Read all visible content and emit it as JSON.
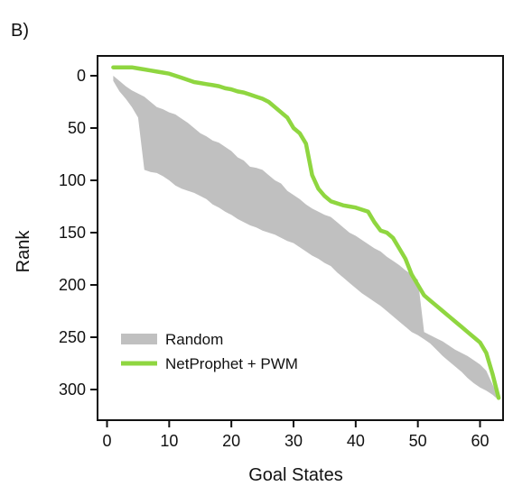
{
  "panel_label": "B)",
  "chart_data": {
    "type": "area",
    "xlabel": "Goal States",
    "ylabel": "Rank",
    "xlim": [
      0,
      64
    ],
    "ylim": [
      0,
      320
    ],
    "y_inverted": true,
    "x_ticks": [
      0,
      10,
      20,
      30,
      40,
      50,
      60
    ],
    "y_ticks": [
      0,
      50,
      100,
      150,
      200,
      250,
      300
    ],
    "x_tick_labels": [
      "0",
      "10",
      "20",
      "30",
      "40",
      "50",
      "60"
    ],
    "y_tick_labels": [
      "0",
      "50",
      "100",
      "150",
      "200",
      "250",
      "300"
    ],
    "grid": false,
    "legend_position": "bottom-left",
    "series": [
      {
        "name": "Random",
        "kind": "band",
        "color": "#c0c0c0",
        "x": [
          1,
          2,
          3,
          4,
          5,
          6,
          7,
          8,
          9,
          10,
          11,
          12,
          13,
          14,
          15,
          16,
          17,
          18,
          19,
          20,
          21,
          22,
          23,
          24,
          25,
          26,
          27,
          28,
          29,
          30,
          31,
          32,
          33,
          34,
          35,
          36,
          37,
          38,
          39,
          40,
          41,
          42,
          43,
          44,
          45,
          46,
          47,
          48,
          49,
          50,
          51,
          52,
          53,
          54,
          55,
          56,
          57,
          58,
          59,
          60,
          61,
          62,
          63
        ],
        "lower": [
          0,
          5,
          10,
          14,
          17,
          20,
          25,
          30,
          32,
          35,
          37,
          41,
          45,
          50,
          55,
          58,
          62,
          64,
          68,
          72,
          78,
          81,
          87,
          88,
          90,
          95,
          100,
          103,
          110,
          114,
          118,
          123,
          127,
          130,
          133,
          135,
          140,
          145,
          150,
          153,
          157,
          161,
          165,
          168,
          173,
          177,
          181,
          186,
          190,
          195,
          245,
          248,
          251,
          254,
          258,
          262,
          265,
          268,
          272,
          276,
          282,
          295,
          308
        ],
        "upper": [
          5,
          15,
          22,
          30,
          40,
          90,
          92,
          93,
          96,
          100,
          105,
          108,
          110,
          112,
          115,
          118,
          123,
          126,
          130,
          133,
          137,
          140,
          143,
          145,
          148,
          150,
          152,
          155,
          158,
          160,
          164,
          168,
          172,
          175,
          179,
          182,
          188,
          193,
          198,
          203,
          208,
          212,
          216,
          220,
          225,
          230,
          235,
          240,
          245,
          248,
          252,
          256,
          262,
          268,
          273,
          278,
          283,
          289,
          294,
          298,
          301,
          305,
          310
        ]
      },
      {
        "name": "NetProphet + PWM",
        "kind": "line",
        "color": "#8fd640",
        "x": [
          1,
          2,
          3,
          4,
          5,
          6,
          7,
          8,
          9,
          10,
          11,
          12,
          13,
          14,
          15,
          16,
          17,
          18,
          19,
          20,
          21,
          22,
          23,
          24,
          25,
          26,
          27,
          28,
          29,
          30,
          31,
          32,
          33,
          34,
          35,
          36,
          37,
          38,
          39,
          40,
          41,
          42,
          43,
          44,
          45,
          46,
          47,
          48,
          49,
          50,
          51,
          52,
          53,
          54,
          55,
          56,
          57,
          58,
          59,
          60,
          61,
          62,
          63
        ],
        "y": [
          -8,
          -8,
          -8,
          -8,
          -7,
          -6,
          -5,
          -4,
          -3,
          -2,
          0,
          2,
          4,
          6,
          7,
          8,
          9,
          10,
          12,
          13,
          15,
          16,
          18,
          20,
          22,
          25,
          30,
          35,
          40,
          50,
          55,
          65,
          95,
          108,
          115,
          120,
          122,
          124,
          125,
          126,
          128,
          130,
          140,
          148,
          150,
          155,
          165,
          175,
          190,
          200,
          210,
          215,
          220,
          225,
          230,
          235,
          240,
          245,
          250,
          255,
          265,
          285,
          308
        ]
      }
    ]
  }
}
